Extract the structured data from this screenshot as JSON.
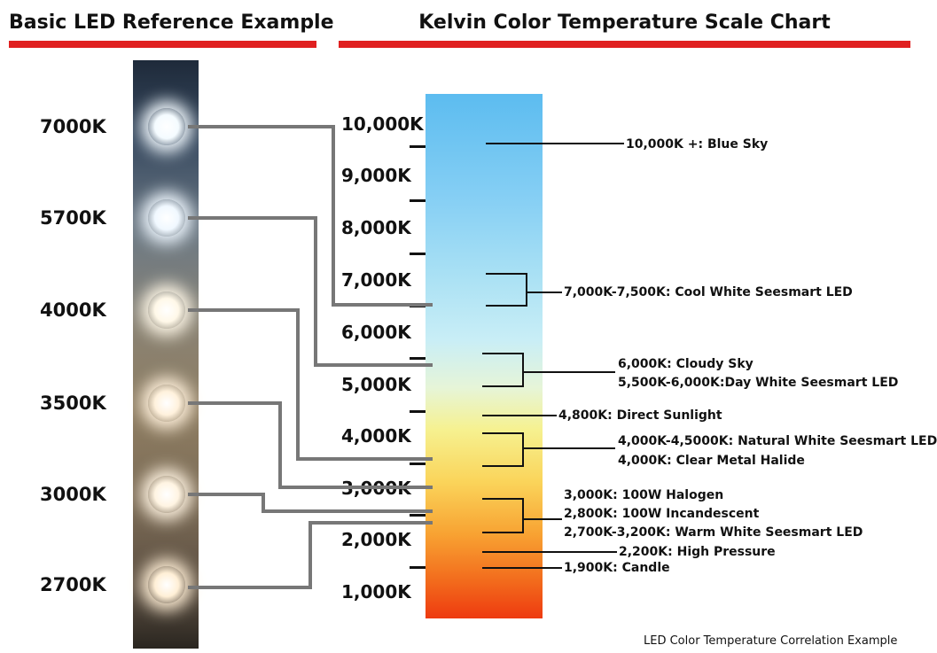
{
  "headings": {
    "left": "Basic LED Reference Example",
    "right": "Kelvin Color Temperature Scale Chart"
  },
  "leds": [
    {
      "label": "7000K",
      "color": "#f4fbff"
    },
    {
      "label": "5700K",
      "color": "#f0f8ff"
    },
    {
      "label": "4000K",
      "color": "#fff8e8"
    },
    {
      "label": "3500K",
      "color": "#fff1dc"
    },
    {
      "label": "3000K",
      "color": "#fff4e2"
    },
    {
      "label": "2700K",
      "color": "#ffefd6"
    }
  ],
  "scale": [
    "10,000K",
    "9,000K",
    "8,000K",
    "7,000K",
    "6,000K",
    "5,000K",
    "4,000K",
    "3,000K",
    "2,000K",
    "1,000K"
  ],
  "annotations": [
    "10,000K +: Blue Sky",
    "7,000K-7,500K: Cool White Seesmart LED",
    "6,000K: Cloudy Sky",
    "5,500K-6,000K:Day White Seesmart LED",
    "4,800K: Direct Sunlight",
    "4,000K-4,5000K: Natural White Seesmart LED",
    "4,000K: Clear Metal Halide",
    "3,000K: 100W Halogen",
    "2,800K: 100W Incandescent",
    "2,700K-3,200K: Warm White Seesmart LED",
    "2,200K: High Pressure",
    "1,900K: Candle"
  ],
  "caption": "LED Color Temperature Correlation Example",
  "colors": {
    "heading_underline": "#e02020",
    "connector_gray": "#777777",
    "bar_top": "#5cbcf0",
    "bar_bottom": "#ee3a10"
  }
}
